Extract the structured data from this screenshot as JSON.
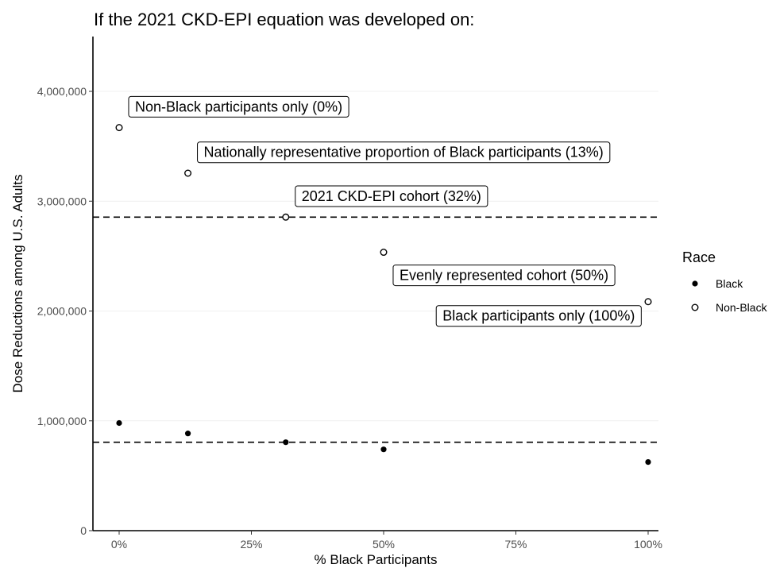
{
  "chart_data": {
    "type": "scatter",
    "title": "If the 2021 CKD-EPI equation was developed on:",
    "xlabel": "% Black Participants",
    "ylabel": "Dose Reductions among U.S. Adults",
    "xlim": [
      -0.05,
      1.02
    ],
    "ylim": [
      0,
      4500000
    ],
    "x_ticks": [
      {
        "value": 0,
        "label": "0%"
      },
      {
        "value": 0.25,
        "label": "25%"
      },
      {
        "value": 0.5,
        "label": "50%"
      },
      {
        "value": 0.75,
        "label": "75%"
      },
      {
        "value": 1.0,
        "label": "100%"
      }
    ],
    "y_ticks": [
      {
        "value": 0,
        "label": "0"
      },
      {
        "value": 1000000,
        "label": "1,000,000"
      },
      {
        "value": 2000000,
        "label": "2,000,000"
      },
      {
        "value": 3000000,
        "label": "3,000,000"
      },
      {
        "value": 4000000,
        "label": "4,000,000"
      }
    ],
    "grid": "horizontal-major",
    "legend": {
      "title": "Race",
      "placement": "right",
      "entries": [
        {
          "name": "Black",
          "marker": "filled-circle"
        },
        {
          "name": "Non-Black",
          "marker": "open-circle"
        }
      ]
    },
    "series": [
      {
        "name": "Black",
        "marker": "filled-circle",
        "points": [
          {
            "x": 0,
            "y": 980000
          },
          {
            "x": 0.13,
            "y": 885000
          },
          {
            "x": 0.315,
            "y": 805000
          },
          {
            "x": 0.5,
            "y": 740000
          },
          {
            "x": 1.0,
            "y": 625000
          }
        ]
      },
      {
        "name": "Non-Black",
        "marker": "open-circle",
        "points": [
          {
            "x": 0,
            "y": 3670000
          },
          {
            "x": 0.13,
            "y": 3255000
          },
          {
            "x": 0.315,
            "y": 2855000
          },
          {
            "x": 0.5,
            "y": 2535000
          },
          {
            "x": 1.0,
            "y": 2085000
          }
        ]
      }
    ],
    "reference_lines": [
      {
        "orientation": "horizontal",
        "y": 2855000,
        "style": "dashed"
      },
      {
        "orientation": "horizontal",
        "y": 805000,
        "style": "dashed"
      }
    ],
    "annotations": [
      {
        "text": "Non-Black participants only (0%)",
        "x": 0,
        "y": 3670000,
        "anchor": "start",
        "dx": 0.03,
        "dy": 190000
      },
      {
        "text": "Nationally representative proportion of Black participants (13%)",
        "x": 0.13,
        "y": 3255000,
        "anchor": "start",
        "dx": 0.03,
        "dy": 190000
      },
      {
        "text": "2021 CKD-EPI cohort (32%)",
        "x": 0.315,
        "y": 2855000,
        "anchor": "start",
        "dx": 0.03,
        "dy": 190000
      },
      {
        "text": "Evenly represented cohort (50%)",
        "x": 0.5,
        "y": 2535000,
        "anchor": "start",
        "dx": 0.03,
        "dy": -210000
      },
      {
        "text": "Black participants only (100%)",
        "x": 1.0,
        "y": 2085000,
        "anchor": "end",
        "dx": -0.025,
        "dy": -130000
      }
    ]
  }
}
